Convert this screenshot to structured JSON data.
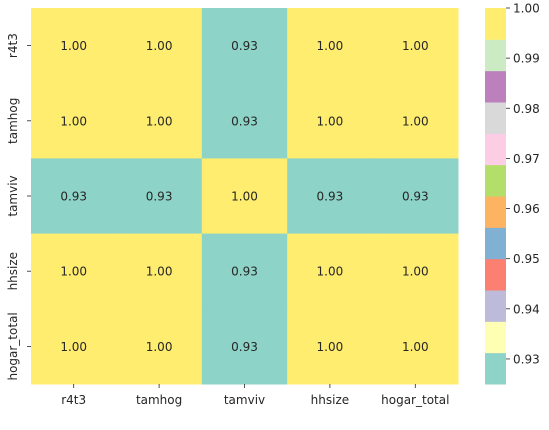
{
  "chart_data": {
    "type": "heatmap",
    "title": "",
    "xlabel": "",
    "ylabel": "",
    "x_labels": [
      "r4t3",
      "tamhog",
      "tamviv",
      "hhsize",
      "hogar_total"
    ],
    "y_labels": [
      "r4t3",
      "tamhog",
      "tamviv",
      "hhsize",
      "hogar_total"
    ],
    "values": [
      [
        1.0,
        1.0,
        0.93,
        1.0,
        1.0
      ],
      [
        1.0,
        1.0,
        0.93,
        1.0,
        1.0
      ],
      [
        0.93,
        0.93,
        1.0,
        0.93,
        0.93
      ],
      [
        1.0,
        1.0,
        0.93,
        1.0,
        1.0
      ],
      [
        1.0,
        1.0,
        0.93,
        1.0,
        1.0
      ]
    ],
    "cell_labels": [
      [
        "1.00",
        "1.00",
        "0.93",
        "1.00",
        "1.00"
      ],
      [
        "1.00",
        "1.00",
        "0.93",
        "1.00",
        "1.00"
      ],
      [
        "0.93",
        "0.93",
        "1.00",
        "0.93",
        "0.93"
      ],
      [
        "1.00",
        "1.00",
        "0.93",
        "1.00",
        "1.00"
      ],
      [
        "1.00",
        "1.00",
        "0.93",
        "1.00",
        "1.00"
      ]
    ],
    "colormap": "Set3",
    "vmin": 0.925,
    "vmax": 1.0,
    "colorbar": {
      "colors": [
        "#8dd3c7",
        "#ffffb3",
        "#bebada",
        "#fb8072",
        "#80b1d3",
        "#fdb462",
        "#b3de69",
        "#fccde5",
        "#d9d9d9",
        "#bc80bd",
        "#ccebc5",
        "#ffed6f"
      ],
      "ticks": [
        0.93,
        0.94,
        0.95,
        0.96,
        0.97,
        0.98,
        0.99,
        1.0
      ],
      "tick_labels": [
        "0.93",
        "0.94",
        "0.95",
        "0.96",
        "0.97",
        "0.98",
        "0.99",
        "1.00"
      ]
    }
  }
}
